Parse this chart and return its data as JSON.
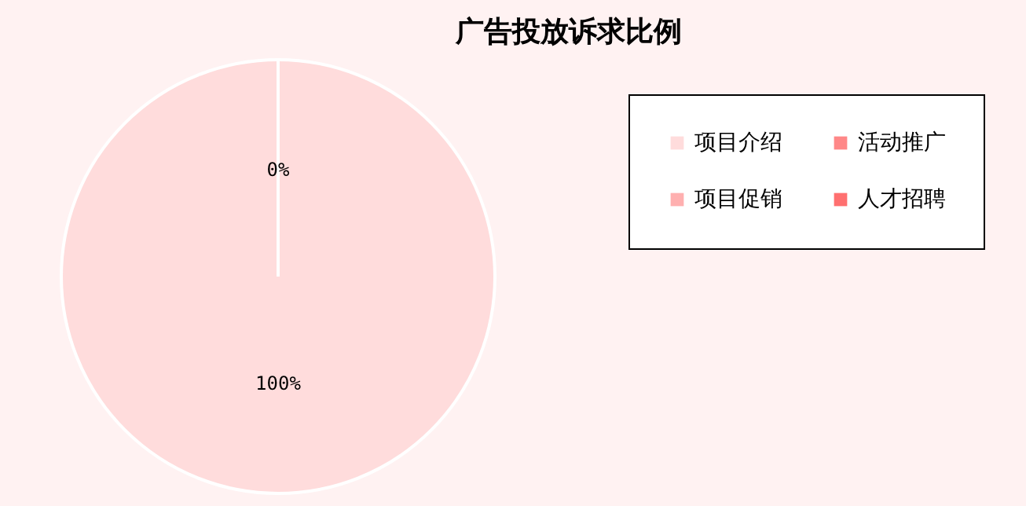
{
  "chart_data": {
    "type": "pie",
    "title": "广告投放诉求比例",
    "categories": [
      "项目介绍",
      "项目促销",
      "活动推广",
      "人才招聘"
    ],
    "values": [
      100,
      0,
      0,
      0
    ],
    "colors": [
      "#ffdcdc",
      "#ffb0b0",
      "#ff8888",
      "#ff7070"
    ],
    "value_labels": [
      "100%",
      "0%",
      null,
      null
    ],
    "legend": "top right"
  }
}
